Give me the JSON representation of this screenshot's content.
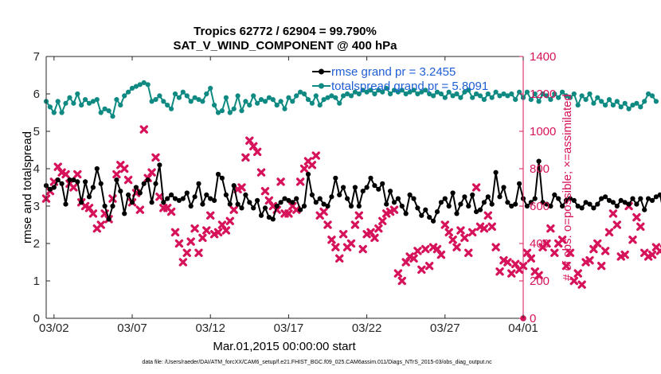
{
  "chart_data": {
    "type": "line",
    "title": "Tropics 62772 / 62904 = 99.790%",
    "subtitle": "SAT_V_WIND_COMPONENT @ 400 hPa",
    "xlabel": "Mar.01,2015 00:00:00 start",
    "ylabel_left": "rmse and totalspread",
    "ylabel_right": "# of obs: o=possible; ×=assimilated",
    "ylim_left": [
      0,
      7
    ],
    "ylim_right": [
      0,
      1400
    ],
    "xlim_days": [
      0.5,
      31.0
    ],
    "x_ticks": [
      {
        "day": 1.0,
        "label": "03/02"
      },
      {
        "day": 6.0,
        "label": "03/07"
      },
      {
        "day": 11.0,
        "label": "03/12"
      },
      {
        "day": 16.0,
        "label": "03/17"
      },
      {
        "day": 21.0,
        "label": "03/22"
      },
      {
        "day": 26.0,
        "label": "03/27"
      },
      {
        "day": 31.0,
        "label": "04/01"
      }
    ],
    "y_ticks_left": [
      "0",
      "1",
      "2",
      "3",
      "4",
      "5",
      "6",
      "7"
    ],
    "y_ticks_right": [
      "0",
      "200",
      "400",
      "600",
      "800",
      "1000",
      "1200",
      "1400"
    ],
    "legend": [
      {
        "label": "rmse grand pr = 3.2455",
        "color": "#000000"
      },
      {
        "label": "totalspread grand pr = 5.8091",
        "color": "#0f8a82"
      }
    ],
    "colors": {
      "rmse": "#000000",
      "spread": "#0f8a82",
      "obs": "#d6135a",
      "right_axis": "#d6135a",
      "legend_text": "#1f5fd6"
    },
    "note": "values sampled every 0.25 day starting day 0.5",
    "series": [
      {
        "name": "rmse",
        "values": [
          3.55,
          3.45,
          3.5,
          3.7,
          3.6,
          3.05,
          3.7,
          3.7,
          3.65,
          3.1,
          3.65,
          3.25,
          3.5,
          4.0,
          3.6,
          3.0,
          2.65,
          3.0,
          3.7,
          3.4,
          2.8,
          3.3,
          3.1,
          3.5,
          3.35,
          3.6,
          3.7,
          3.1,
          3.6,
          4.1,
          3.1,
          3.2,
          3.3,
          3.2,
          3.15,
          3.2,
          3.35,
          3.0,
          3.25,
          3.6,
          3.05,
          3.3,
          3.2,
          3.15,
          3.85,
          3.75,
          3.3,
          3.05,
          3.55,
          3.05,
          2.95,
          3.3,
          3.1,
          2.95,
          3.15,
          2.75,
          2.95,
          2.7,
          2.65,
          3.0,
          3.1,
          3.2,
          3.15,
          3.1,
          3.2,
          2.9,
          3.0,
          3.85,
          3.3,
          3.1,
          3.2,
          3.05,
          3.0,
          3.25,
          3.75,
          3.3,
          3.5,
          3.2,
          3.0,
          3.5,
          3.0,
          3.4,
          3.5,
          3.75,
          3.55,
          3.45,
          3.6,
          3.05,
          3.4,
          3.1,
          3.2,
          3.0,
          2.8,
          3.3,
          3.2,
          2.95,
          2.75,
          2.9,
          2.7,
          2.6,
          2.85,
          3.1,
          3.2,
          3.0,
          3.35,
          2.8,
          3.05,
          3.25,
          3.0,
          3.3,
          2.85,
          2.9,
          3.1,
          3.25,
          3.05,
          3.9,
          3.25,
          3.5,
          3.1,
          3.0,
          3.05,
          3.6,
          3.2,
          3.0,
          3.1,
          3.2,
          4.2,
          3.1,
          3.05,
          3.0,
          3.3,
          3.2,
          3.0,
          3.15,
          3.2,
          3.15,
          3.0,
          2.95,
          3.1,
          3.05,
          2.95,
          3.05,
          3.2,
          3.25,
          3.15,
          3.1,
          3.0,
          3.15,
          3.1,
          3.05,
          3.2,
          3.05,
          3.2,
          2.9,
          3.2,
          3.15,
          3.25,
          3.3,
          2.8
        ]
      },
      {
        "name": "totalspread",
        "values": [
          5.8,
          5.65,
          5.5,
          5.8,
          5.5,
          5.75,
          5.9,
          5.75,
          6.0,
          5.7,
          5.85,
          5.75,
          5.8,
          5.85,
          5.5,
          5.6,
          5.55,
          5.4,
          5.85,
          5.7,
          5.95,
          6.05,
          6.15,
          6.2,
          6.25,
          6.3,
          6.25,
          5.8,
          5.85,
          5.95,
          5.8,
          5.7,
          5.6,
          6.0,
          5.9,
          6.05,
          5.95,
          5.8,
          5.9,
          5.85,
          5.8,
          6.0,
          6.15,
          5.7,
          5.5,
          5.55,
          5.9,
          5.5,
          5.6,
          5.95,
          5.55,
          5.8,
          5.7,
          5.95,
          5.75,
          5.85,
          5.8,
          5.9,
          5.85,
          5.7,
          5.8,
          5.6,
          5.9,
          5.8,
          5.95,
          6.05,
          6.0,
          5.85,
          5.75,
          5.95,
          5.7,
          5.85,
          5.9,
          5.95,
          5.9,
          5.75,
          5.95,
          6.0,
          5.95,
          6.05,
          6.0,
          6.1,
          6.05,
          6.1,
          6.0,
          6.1,
          6.05,
          6.15,
          6.0,
          6.1,
          6.05,
          6.1,
          6.0,
          6.05,
          6.1,
          6.0,
          6.05,
          6.1,
          6.0,
          5.95,
          6.05,
          6.0,
          5.9,
          6.05,
          5.95,
          6.0,
          5.9,
          6.05,
          6.1,
          5.9,
          6.0,
          5.95,
          5.85,
          6.0,
          5.9,
          6.05,
          5.95,
          6.0,
          5.95,
          6.0,
          5.85,
          6.05,
          5.9,
          6.05,
          5.85,
          6.0,
          5.8,
          6.0,
          5.95,
          5.85,
          6.0,
          5.9,
          6.05,
          5.95,
          5.9,
          6.0,
          5.7,
          5.95,
          5.85,
          6.0,
          5.75,
          5.9,
          5.8,
          5.7,
          5.85,
          5.7,
          5.8,
          5.65,
          5.75,
          5.6,
          5.7,
          5.75,
          5.65,
          5.8,
          6.0,
          5.95,
          5.8
        ]
      },
      {
        "name": "obs_assimilated",
        "values": [
          640,
          680,
          730,
          810,
          780,
          770,
          720,
          700,
          770,
          620,
          600,
          590,
          560,
          480,
          500,
          560,
          530,
          640,
          770,
          820,
          800,
          740,
          620,
          670,
          580,
          1010,
          750,
          780,
          860,
          650,
          590,
          590,
          570,
          460,
          400,
          300,
          350,
          410,
          480,
          350,
          430,
          470,
          550,
          450,
          460,
          500,
          470,
          520,
          580,
          690,
          700,
          860,
          950,
          920,
          890,
          780,
          680,
          630,
          600,
          580,
          730,
          560,
          560,
          600,
          580,
          730,
          800,
          840,
          820,
          870,
          550,
          570,
          500,
          420,
          380,
          320,
          450,
          380,
          400,
          500,
          550,
          370,
          450,
          460,
          430,
          480,
          520,
          560,
          570,
          580,
          240,
          200,
          300,
          330,
          320,
          360,
          260,
          370,
          280,
          380,
          370,
          340,
          500,
          460,
          420,
          380,
          470,
          430,
          350,
          460,
          700,
          490,
          480,
          550,
          490,
          380,
          250,
          310,
          300,
          240,
          290,
          260,
          280,
          350,
          320,
          250,
          230,
          380,
          400,
          480,
          350,
          400,
          420,
          280,
          350,
          200,
          240,
          180,
          300,
          310,
          370,
          400,
          280,
          360,
          460,
          560,
          500,
          330,
          340,
          600,
          420,
          540,
          490,
          350,
          330,
          340,
          380,
          360,
          370,
          330
        ]
      }
    ]
  },
  "footer": "data file: /Users/raeder/DAI/ATM_forcXX/CAM6_setup/f.e21.FHIST_BGC.f09_025.CAM6assim.011/Diags_NTrS_2015-03/obs_diag_output.nc"
}
